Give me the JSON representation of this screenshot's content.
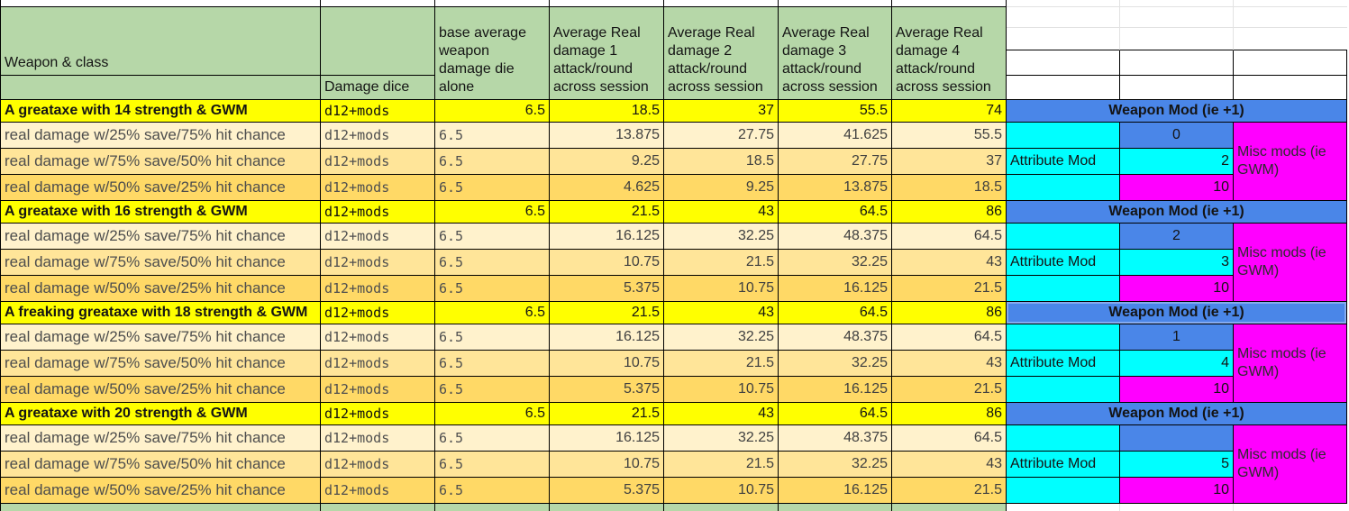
{
  "columns": {
    "weapon_class": "Weapon & class",
    "damage_dice": "Damage dice",
    "value_headers": [
      [
        "base average",
        "weapon",
        "damage die",
        "alone"
      ],
      [
        "Average Real",
        "damage 1",
        "attack/round",
        "across session"
      ],
      [
        "Average Real",
        "damage 2",
        "attack/round",
        "across session"
      ],
      [
        "Average Real",
        "damage 3",
        "attack/round",
        "across session"
      ],
      [
        "Average Real",
        "damage 4",
        "attack/round",
        "across session"
      ]
    ]
  },
  "right_panel": {
    "weapon_mod_label": "Weapon Mod (ie +1)",
    "attribute_mod_label": "Attribute Mod",
    "misc_mods_label": "Misc mods (ie GWM)"
  },
  "groups": [
    {
      "title": "A greataxe with 14 strength & GWM",
      "damage_dice": "d12+mods",
      "base_avg": "6.5",
      "values": [
        "18.5",
        "37",
        "55.5",
        "74"
      ],
      "weapon_mod": "0",
      "attribute_mod": "2",
      "misc_mod": "10",
      "highlighted": false,
      "sub_rows": [
        {
          "label": "real damage w/25% save/75% hit chance",
          "damage_dice": "d12+mods",
          "base_avg": "6.5",
          "values": [
            "13.875",
            "27.75",
            "41.625",
            "55.5"
          ]
        },
        {
          "label": "real damage w/75% save/50% hit chance",
          "damage_dice": "d12+mods",
          "base_avg": "6.5",
          "values": [
            "9.25",
            "18.5",
            "27.75",
            "37"
          ]
        },
        {
          "label": "real damage w/50% save/25% hit chance",
          "damage_dice": "d12+mods",
          "base_avg": "6.5",
          "values": [
            "4.625",
            "9.25",
            "13.875",
            "18.5"
          ]
        }
      ]
    },
    {
      "title": "A greataxe with 16 strength & GWM",
      "damage_dice": "d12+mods",
      "base_avg": "6.5",
      "values": [
        "21.5",
        "43",
        "64.5",
        "86"
      ],
      "weapon_mod": "2",
      "attribute_mod": "3",
      "misc_mod": "10",
      "highlighted": false,
      "sub_rows": [
        {
          "label": "real damage w/25% save/75% hit chance",
          "damage_dice": "d12+mods",
          "base_avg": "6.5",
          "values": [
            "16.125",
            "32.25",
            "48.375",
            "64.5"
          ]
        },
        {
          "label": "real damage w/75% save/50% hit chance",
          "damage_dice": "d12+mods",
          "base_avg": "6.5",
          "values": [
            "10.75",
            "21.5",
            "32.25",
            "43"
          ]
        },
        {
          "label": "real damage w/50% save/25% hit chance",
          "damage_dice": "d12+mods",
          "base_avg": "6.5",
          "values": [
            "5.375",
            "10.75",
            "16.125",
            "21.5"
          ]
        }
      ]
    },
    {
      "title": "A freaking greataxe with 18 strength & GWM",
      "damage_dice": "d12+mods",
      "base_avg": "6.5",
      "values": [
        "21.5",
        "43",
        "64.5",
        "86"
      ],
      "weapon_mod": "1",
      "attribute_mod": "4",
      "misc_mod": "10",
      "highlighted": true,
      "sub_rows": [
        {
          "label": "real damage w/25% save/75% hit chance",
          "damage_dice": "d12+mods",
          "base_avg": "6.5",
          "values": [
            "16.125",
            "32.25",
            "48.375",
            "64.5"
          ]
        },
        {
          "label": "real damage w/75% save/50% hit chance",
          "damage_dice": "d12+mods",
          "base_avg": "6.5",
          "values": [
            "10.75",
            "21.5",
            "32.25",
            "43"
          ]
        },
        {
          "label": "real damage w/50% save/25% hit chance",
          "damage_dice": "d12+mods",
          "base_avg": "6.5",
          "values": [
            "5.375",
            "10.75",
            "16.125",
            "21.5"
          ]
        }
      ]
    },
    {
      "title": "A greataxe with 20 strength & GWM",
      "damage_dice": "d12+mods",
      "base_avg": "6.5",
      "values": [
        "21.5",
        "43",
        "64.5",
        "86"
      ],
      "weapon_mod": "",
      "attribute_mod": "5",
      "misc_mod": "10",
      "highlighted": false,
      "sub_rows": [
        {
          "label": "real damage w/25% save/75% hit chance",
          "damage_dice": "d12+mods",
          "base_avg": "6.5",
          "values": [
            "16.125",
            "32.25",
            "48.375",
            "64.5"
          ]
        },
        {
          "label": "real damage w/75% save/50% hit chance",
          "damage_dice": "d12+mods",
          "base_avg": "6.5",
          "values": [
            "10.75",
            "21.5",
            "32.25",
            "43"
          ]
        },
        {
          "label": "real damage w/50% save/25% hit chance",
          "damage_dice": "d12+mods",
          "base_avg": "6.5",
          "values": [
            "5.375",
            "10.75",
            "16.125",
            "21.5"
          ]
        }
      ]
    }
  ],
  "colors": {
    "header_green": "#b6d7a8",
    "group_yellow": "#ffff00",
    "sub_row_shades": [
      "#fff2cc",
      "#ffe599",
      "#ffd966"
    ],
    "weapon_mod_blue": "#4a86e8",
    "attribute_cyan": "#00ffff",
    "misc_magenta": "#ff00ff"
  }
}
